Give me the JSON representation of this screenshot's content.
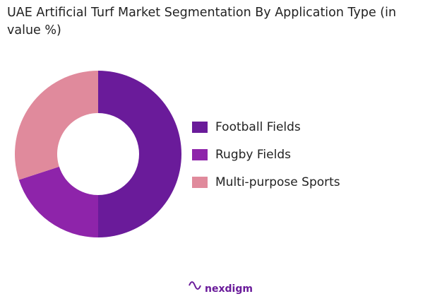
{
  "chart_data": {
    "type": "donut",
    "title": "UAE Artificial Turf Market Segmentation By Application Type (in value %)",
    "categories": [
      "Football Fields",
      "Rugby Fields",
      "Multi-purpose Sports"
    ],
    "values": [
      50,
      20,
      30
    ],
    "colors": [
      "#6a1b9a",
      "#8e24aa",
      "#e08a9c"
    ],
    "legend": "right"
  },
  "logo": "nexdigm"
}
